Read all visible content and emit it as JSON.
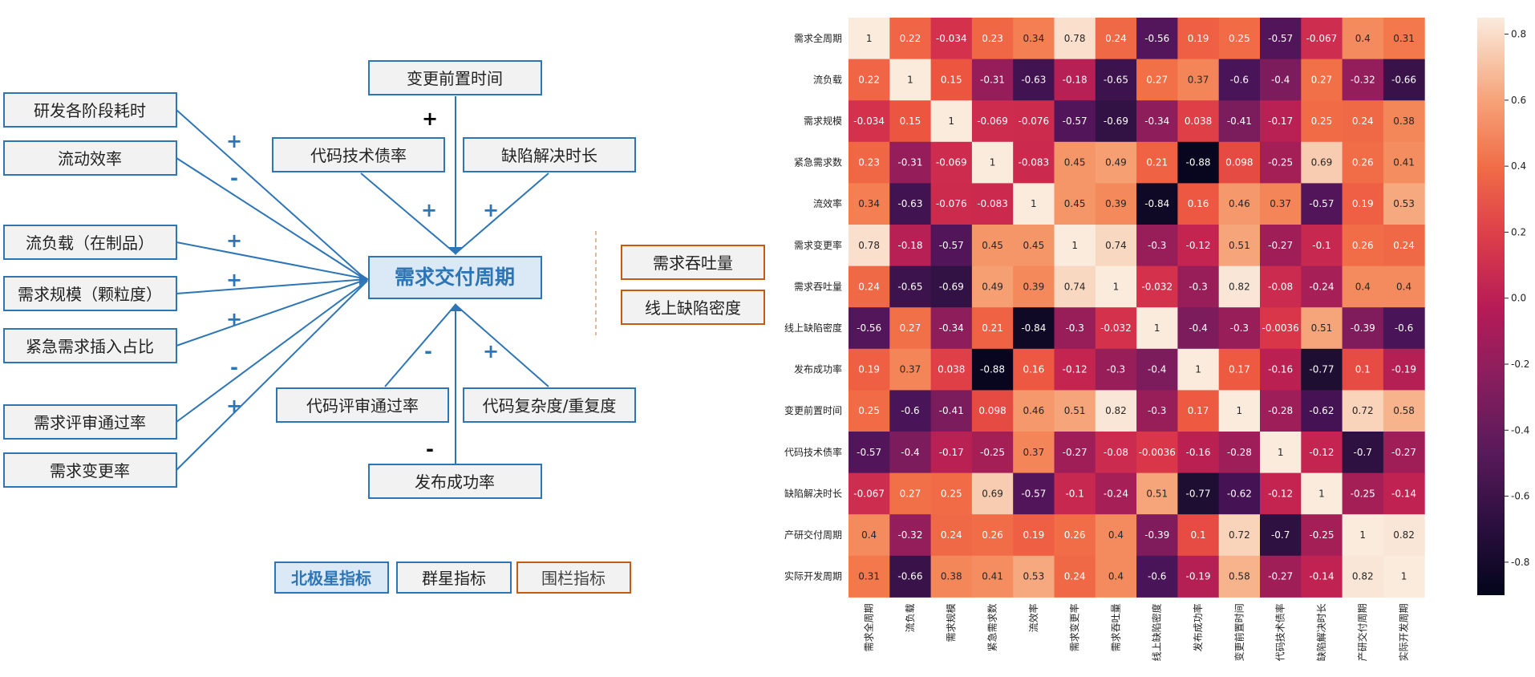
{
  "diagram": {
    "center": {
      "label": "需求交付周期"
    },
    "left_nodes": [
      {
        "id": "l1",
        "label": "研发各阶段耗时",
        "sign": "+"
      },
      {
        "id": "l2",
        "label": "流动效率",
        "sign": "-"
      },
      {
        "id": "l3",
        "label": "流负载（在制品）",
        "sign": "+"
      },
      {
        "id": "l4",
        "label": "需求规模（颗粒度）",
        "sign": "+"
      },
      {
        "id": "l5",
        "label": "紧急需求插入占比",
        "sign": "+"
      },
      {
        "id": "l6",
        "label": "需求评审通过率",
        "sign": "-"
      },
      {
        "id": "l7",
        "label": "需求变更率",
        "sign": "+"
      }
    ],
    "top_nodes": [
      {
        "id": "t1",
        "label": "变更前置时间",
        "sign": "+"
      },
      {
        "id": "t2",
        "label": "代码技术债率",
        "sign": "+"
      },
      {
        "id": "t3",
        "label": "缺陷解决时长",
        "sign": "+"
      }
    ],
    "bottom_nodes": [
      {
        "id": "b1",
        "label": "代码评审通过率",
        "sign": "-"
      },
      {
        "id": "b2",
        "label": "代码复杂度/重复度",
        "sign": "+"
      },
      {
        "id": "b3",
        "label": "发布成功率",
        "sign": "-"
      }
    ],
    "guardrail_nodes": [
      {
        "id": "g1",
        "label": "需求吞吐量"
      },
      {
        "id": "g2",
        "label": "线上缺陷密度"
      }
    ],
    "legend": {
      "north_star": "北极星指标",
      "constellation": "群星指标",
      "guardrail": "围栏指标"
    },
    "colors": {
      "blue": "#2e75b6",
      "orange": "#c55a11",
      "center_fill": "#dbe9f6",
      "box_fill": "#f2f2f2",
      "text": "#222222"
    }
  },
  "chart_data": {
    "type": "heatmap",
    "rows": [
      "需求全周期",
      "流负载",
      "需求规模",
      "紧急需求数",
      "流效率",
      "需求变更率",
      "需求吞吐量",
      "线上缺陷密度",
      "发布成功率",
      "变更前置时间",
      "代码技术债率",
      "缺陷解决时长",
      "产研交付周期",
      "实际开发周期"
    ],
    "cols": [
      "需求全周期",
      "流负载",
      "需求规模",
      "紧急需求数",
      "流效率",
      "需求变更率",
      "需求吞吐量",
      "线上缺陷密度",
      "发布成功率",
      "变更前置时间",
      "代码技术债率",
      "缺陷解决时长",
      "产研交付周期",
      "实际开发周期"
    ],
    "values": [
      [
        1,
        0.22,
        -0.034,
        0.23,
        0.34,
        0.78,
        0.24,
        -0.56,
        0.19,
        0.25,
        -0.57,
        -0.067,
        0.4,
        0.31
      ],
      [
        0.22,
        1,
        0.15,
        -0.31,
        -0.63,
        -0.18,
        -0.65,
        0.27,
        0.37,
        -0.6,
        -0.4,
        0.27,
        -0.32,
        -0.66
      ],
      [
        -0.034,
        0.15,
        1,
        -0.069,
        -0.076,
        -0.57,
        -0.69,
        -0.34,
        0.038,
        -0.41,
        -0.17,
        0.25,
        0.24,
        0.38
      ],
      [
        0.23,
        -0.31,
        -0.069,
        1,
        -0.083,
        0.45,
        0.49,
        0.21,
        -0.88,
        0.098,
        -0.25,
        0.69,
        0.26,
        0.41
      ],
      [
        0.34,
        -0.63,
        -0.076,
        -0.083,
        1,
        0.45,
        0.39,
        -0.84,
        0.16,
        0.46,
        0.37,
        -0.57,
        0.19,
        0.53
      ],
      [
        0.78,
        -0.18,
        -0.57,
        0.45,
        0.45,
        1,
        0.74,
        -0.3,
        -0.12,
        0.51,
        -0.27,
        -0.1,
        0.26,
        0.24
      ],
      [
        0.24,
        -0.65,
        -0.69,
        0.49,
        0.39,
        0.74,
        1,
        -0.032,
        -0.3,
        0.82,
        -0.08,
        -0.24,
        0.4,
        0.4
      ],
      [
        -0.56,
        0.27,
        -0.34,
        0.21,
        -0.84,
        -0.3,
        -0.032,
        1,
        -0.4,
        -0.3,
        -0.0036,
        0.51,
        -0.39,
        -0.6
      ],
      [
        0.19,
        0.37,
        0.038,
        -0.88,
        0.16,
        -0.12,
        -0.3,
        -0.4,
        1,
        0.17,
        -0.16,
        -0.77,
        0.1,
        -0.19
      ],
      [
        0.25,
        -0.6,
        -0.41,
        0.098,
        0.46,
        0.51,
        0.82,
        -0.3,
        0.17,
        1,
        -0.28,
        -0.62,
        0.72,
        0.58
      ],
      [
        -0.57,
        -0.4,
        -0.17,
        -0.25,
        0.37,
        -0.27,
        -0.08,
        -0.0036,
        -0.16,
        -0.28,
        1,
        -0.12,
        -0.7,
        -0.27
      ],
      [
        -0.067,
        0.27,
        0.25,
        0.69,
        -0.57,
        -0.1,
        -0.24,
        0.51,
        -0.77,
        -0.62,
        -0.12,
        1,
        -0.25,
        -0.14
      ],
      [
        0.4,
        -0.32,
        0.24,
        0.26,
        0.19,
        0.26,
        0.4,
        -0.39,
        0.1,
        0.72,
        -0.7,
        -0.25,
        1,
        0.82
      ],
      [
        0.31,
        -0.66,
        0.38,
        0.41,
        0.53,
        0.24,
        0.4,
        -0.6,
        -0.19,
        0.58,
        -0.27,
        -0.14,
        0.82,
        1
      ]
    ],
    "colorbar": {
      "ticks": [
        0.8,
        0.6,
        0.4,
        0.2,
        0.0,
        -0.2,
        -0.4,
        -0.6,
        -0.8
      ],
      "tick_labels": [
        "0.8",
        "0.6",
        "0.4",
        "0.2",
        "0.0",
        "-0.2",
        "-0.4",
        "-0.6",
        "-0.8"
      ],
      "vmin": -0.9,
      "vmax": 0.85
    },
    "colormap": "rocket"
  }
}
